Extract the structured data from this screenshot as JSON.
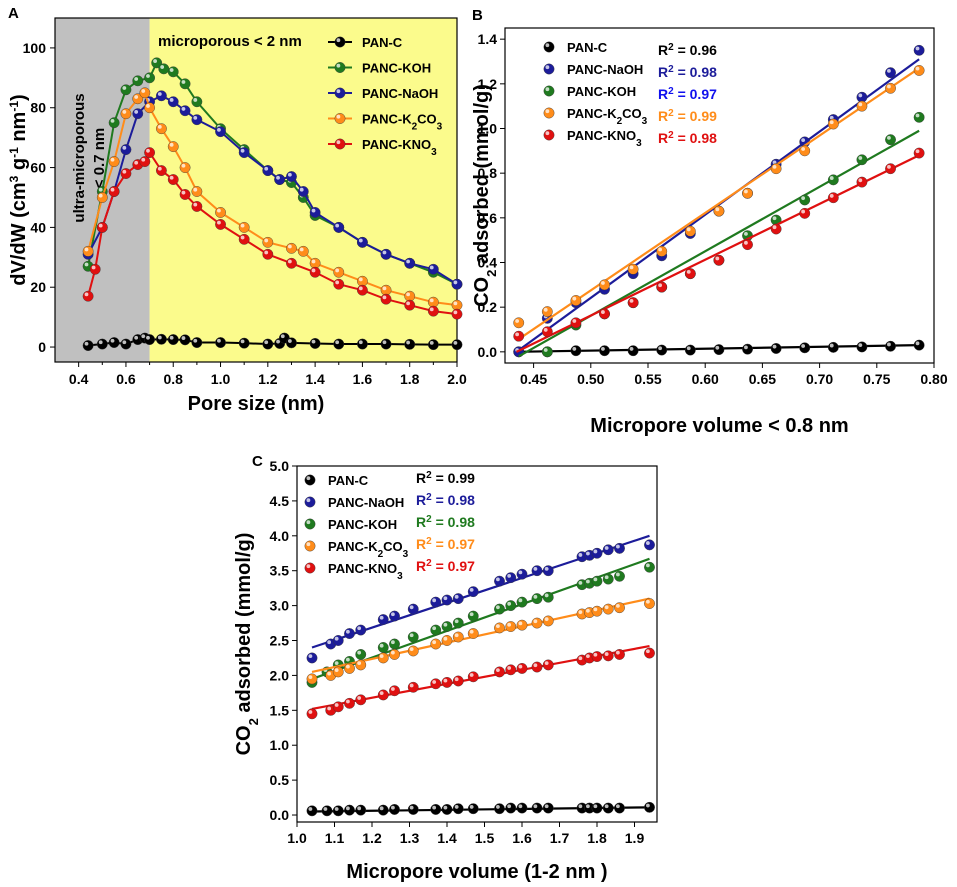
{
  "figure": {
    "colors": {
      "PAN-C": "#000000",
      "PANC-KOH": "#1f7a1f",
      "PANC-NaOH": "#1c1c9a",
      "PANC-K2CO3": "#ff8c1a",
      "PANC-KNO3": "#e01010",
      "r2_blue_B": "#1010ee",
      "region_gray": "#c0c0c0",
      "region_yellow": "#fbfb8c"
    }
  },
  "chart_data": [
    {
      "panel": "A",
      "type": "line",
      "title": "",
      "xlabel": "Pore size (nm)",
      "ylabel": "dV/dW (cm³ g⁻¹ nm⁻¹)",
      "xlim": [
        0.3,
        2.0
      ],
      "ylim": [
        -5,
        110
      ],
      "xticks": [
        "0.4",
        "0.6",
        "0.8",
        "1.0",
        "1.2",
        "1.4",
        "1.6",
        "1.8",
        "2.0"
      ],
      "yticks": [
        "0",
        "20",
        "40",
        "60",
        "80",
        "100"
      ],
      "regions": [
        {
          "label_line1": "ultra-microporous",
          "label_line2": "< 0.7 nm",
          "x_from": 0.3,
          "x_to": 0.7
        },
        {
          "label": "microporous < 2 nm",
          "x_from": 0.7,
          "x_to": 2.0
        }
      ],
      "legend": [
        "PAN-C",
        "PANC-KOH",
        "PANC-NaOH",
        "PANC-K2CO3",
        "PANC-KNO3"
      ],
      "legend_labels": [
        "PAN-C",
        "PANC-KOH",
        "PANC-NaOH",
        "PANC-K₂CO₃",
        "PANC-KNO₃"
      ],
      "series": [
        {
          "name": "PAN-C",
          "x": [
            0.44,
            0.5,
            0.55,
            0.6,
            0.65,
            0.68,
            0.7,
            0.75,
            0.8,
            0.85,
            0.9,
            1.0,
            1.1,
            1.2,
            1.25,
            1.27,
            1.3,
            1.4,
            1.5,
            1.6,
            1.7,
            1.8,
            1.9,
            2.0
          ],
          "y": [
            0.5,
            1.0,
            1.5,
            1.0,
            2.5,
            3.0,
            2.5,
            2.6,
            2.5,
            2.4,
            1.5,
            1.5,
            1.3,
            1.0,
            1.2,
            3.0,
            1.4,
            1.2,
            1.0,
            1.0,
            1.0,
            0.9,
            0.8,
            0.8
          ]
        },
        {
          "name": "PANC-KOH",
          "x": [
            0.44,
            0.5,
            0.55,
            0.6,
            0.65,
            0.7,
            0.73,
            0.76,
            0.8,
            0.85,
            0.9,
            1.0,
            1.1,
            1.2,
            1.25,
            1.3,
            1.35,
            1.4,
            1.5,
            1.6,
            1.7,
            1.8,
            1.9,
            2.0
          ],
          "y": [
            27,
            52,
            75,
            86,
            89,
            90,
            95,
            93,
            92,
            88,
            82,
            73,
            66,
            59,
            56,
            55,
            50,
            44,
            40,
            35,
            31,
            28,
            25,
            21
          ]
        },
        {
          "name": "PANC-NaOH",
          "x": [
            0.44,
            0.5,
            0.55,
            0.6,
            0.65,
            0.7,
            0.75,
            0.8,
            0.85,
            0.9,
            1.0,
            1.1,
            1.2,
            1.25,
            1.3,
            1.35,
            1.4,
            1.5,
            1.6,
            1.7,
            1.8,
            1.9,
            2.0
          ],
          "y": [
            31,
            40,
            52,
            66,
            78,
            82,
            84,
            82,
            79,
            76,
            72,
            65,
            59,
            56,
            57,
            52,
            45,
            40,
            35,
            31,
            28,
            26,
            21
          ]
        },
        {
          "name": "PANC-K2CO3",
          "x": [
            0.44,
            0.5,
            0.55,
            0.6,
            0.65,
            0.68,
            0.7,
            0.75,
            0.8,
            0.85,
            0.9,
            1.0,
            1.1,
            1.2,
            1.3,
            1.35,
            1.4,
            1.5,
            1.6,
            1.7,
            1.8,
            1.9,
            2.0
          ],
          "y": [
            32,
            50,
            62,
            78,
            83,
            85,
            80,
            73,
            67,
            60,
            52,
            45,
            40,
            35,
            33,
            32,
            28,
            25,
            22,
            19,
            17,
            15,
            14
          ]
        },
        {
          "name": "PANC-KNO3",
          "x": [
            0.44,
            0.47,
            0.5,
            0.55,
            0.6,
            0.65,
            0.68,
            0.7,
            0.75,
            0.8,
            0.85,
            0.9,
            1.0,
            1.1,
            1.2,
            1.3,
            1.4,
            1.5,
            1.6,
            1.7,
            1.8,
            1.9,
            2.0
          ],
          "y": [
            17,
            26,
            40,
            52,
            58,
            61,
            62,
            65,
            59,
            56,
            51,
            47,
            41,
            36,
            31,
            28,
            25,
            21,
            19,
            16,
            14,
            12,
            11
          ]
        }
      ]
    },
    {
      "panel": "B",
      "type": "scatter",
      "title": "",
      "xlabel": "Micropore volume < 0.8 nm",
      "ylabel": "CO₂ adsorbed (mmol/g)",
      "xlim": [
        0.425,
        0.8
      ],
      "ylim": [
        -0.05,
        1.45
      ],
      "xticks": [
        "0.45",
        "0.50",
        "0.55",
        "0.60",
        "0.65",
        "0.70",
        "0.75",
        "0.80"
      ],
      "yticks": [
        "0.0",
        "0.2",
        "0.4",
        "0.6",
        "0.8",
        "1.0",
        "1.2",
        "1.4"
      ],
      "legend": [
        "PAN-C",
        "PANC-NaOH",
        "PANC-KOH",
        "PANC-K2CO3",
        "PANC-KNO3"
      ],
      "legend_labels": [
        "PAN-C",
        "PANC-NaOH",
        "PANC-KOH",
        "PANC-K₂CO₃",
        "PANC-KNO₃"
      ],
      "r2": [
        "R² = 0.96",
        "R² = 0.98",
        "R² = 0.97",
        "R² = 0.99",
        "R² = 0.98"
      ],
      "series": [
        {
          "name": "PAN-C",
          "x": [
            0.437,
            0.462,
            0.487,
            0.512,
            0.537,
            0.562,
            0.587,
            0.612,
            0.637,
            0.662,
            0.687,
            0.712,
            0.737,
            0.762,
            0.787
          ],
          "y": [
            0.0,
            0.0,
            0.005,
            0.005,
            0.005,
            0.008,
            0.008,
            0.01,
            0.012,
            0.015,
            0.018,
            0.02,
            0.022,
            0.025,
            0.03
          ],
          "fit": [
            [
              0.435,
              0.0
            ],
            [
              0.787,
              0.03
            ]
          ]
        },
        {
          "name": "PANC-NaOH",
          "x": [
            0.437,
            0.462,
            0.487,
            0.512,
            0.537,
            0.562,
            0.587,
            0.612,
            0.637,
            0.662,
            0.687,
            0.712,
            0.737,
            0.762,
            0.787
          ],
          "y": [
            0.0,
            0.15,
            0.22,
            0.28,
            0.35,
            0.43,
            0.53,
            0.63,
            0.71,
            0.84,
            0.94,
            1.04,
            1.14,
            1.25,
            1.35
          ],
          "fit": [
            [
              0.435,
              0.0
            ],
            [
              0.787,
              1.31
            ]
          ]
        },
        {
          "name": "PANC-KOH",
          "x": [
            0.462,
            0.487,
            0.512,
            0.537,
            0.562,
            0.587,
            0.612,
            0.637,
            0.662,
            0.687,
            0.712,
            0.737,
            0.762,
            0.787
          ],
          "y": [
            0.0,
            0.12,
            0.17,
            0.22,
            0.29,
            0.35,
            0.41,
            0.52,
            0.59,
            0.68,
            0.77,
            0.86,
            0.95,
            1.05
          ],
          "fit": [
            [
              0.437,
              -0.02
            ],
            [
              0.787,
              0.99
            ]
          ]
        },
        {
          "name": "PANC-K2CO3",
          "x": [
            0.437,
            0.462,
            0.487,
            0.512,
            0.537,
            0.562,
            0.587,
            0.612,
            0.637,
            0.662,
            0.687,
            0.712,
            0.737,
            0.762,
            0.787
          ],
          "y": [
            0.13,
            0.18,
            0.23,
            0.3,
            0.37,
            0.45,
            0.54,
            0.63,
            0.71,
            0.82,
            0.9,
            1.02,
            1.1,
            1.18,
            1.26
          ],
          "fit": [
            [
              0.435,
              0.05
            ],
            [
              0.787,
              1.27
            ]
          ]
        },
        {
          "name": "PANC-KNO3",
          "x": [
            0.437,
            0.462,
            0.487,
            0.512,
            0.537,
            0.562,
            0.587,
            0.612,
            0.637,
            0.662,
            0.687,
            0.712,
            0.737,
            0.762,
            0.787
          ],
          "y": [
            0.07,
            0.09,
            0.13,
            0.17,
            0.22,
            0.29,
            0.35,
            0.41,
            0.48,
            0.55,
            0.62,
            0.69,
            0.76,
            0.82,
            0.89
          ],
          "fit": [
            [
              0.435,
              0.0
            ],
            [
              0.787,
              0.88
            ]
          ]
        }
      ]
    },
    {
      "panel": "C",
      "type": "scatter",
      "title": "",
      "xlabel": "Micropore volume (1-2 nm )",
      "ylabel": "CO₂ adsorbed (mmol/g)",
      "xlim": [
        1.0,
        1.96
      ],
      "ylim": [
        -0.1,
        5.0
      ],
      "xticks": [
        "1.0",
        "1.1",
        "1.2",
        "1.3",
        "1.4",
        "1.5",
        "1.6",
        "1.7",
        "1.8",
        "1.9"
      ],
      "yticks": [
        "0.0",
        "0.5",
        "1.0",
        "1.5",
        "2.0",
        "2.5",
        "3.0",
        "3.5",
        "4.0",
        "4.5",
        "5.0"
      ],
      "legend": [
        "PAN-C",
        "PANC-NaOH",
        "PANC-KOH",
        "PANC-K2CO3",
        "PANC-KNO3"
      ],
      "legend_labels": [
        "PAN-C",
        "PANC-NaOH",
        "PANC-KOH",
        "PANC-K₂CO₃",
        "PANC-KNO₃"
      ],
      "r2": [
        "R² = 0.99",
        "R² = 0.98",
        "R² = 0.98",
        "R² = 0.97",
        "R² = 0.97"
      ],
      "series": [
        {
          "name": "PAN-C",
          "x": [
            1.04,
            1.08,
            1.11,
            1.14,
            1.17,
            1.23,
            1.26,
            1.31,
            1.37,
            1.4,
            1.43,
            1.47,
            1.54,
            1.57,
            1.6,
            1.64,
            1.67,
            1.76,
            1.78,
            1.8,
            1.83,
            1.86,
            1.94
          ],
          "y": [
            0.06,
            0.06,
            0.06,
            0.07,
            0.07,
            0.07,
            0.08,
            0.08,
            0.08,
            0.08,
            0.09,
            0.09,
            0.09,
            0.1,
            0.1,
            0.1,
            0.1,
            0.1,
            0.1,
            0.1,
            0.1,
            0.1,
            0.11
          ],
          "fit": [
            [
              1.04,
              0.05
            ],
            [
              1.94,
              0.11
            ]
          ]
        },
        {
          "name": "PANC-NaOH",
          "x": [
            1.04,
            1.09,
            1.11,
            1.14,
            1.17,
            1.23,
            1.26,
            1.31,
            1.37,
            1.4,
            1.43,
            1.47,
            1.54,
            1.57,
            1.6,
            1.64,
            1.67,
            1.76,
            1.78,
            1.8,
            1.83,
            1.86,
            1.94
          ],
          "y": [
            2.25,
            2.45,
            2.5,
            2.6,
            2.65,
            2.8,
            2.85,
            2.95,
            3.05,
            3.08,
            3.1,
            3.2,
            3.35,
            3.4,
            3.45,
            3.5,
            3.5,
            3.7,
            3.72,
            3.75,
            3.8,
            3.82,
            3.87
          ],
          "fit": [
            [
              1.04,
              2.4
            ],
            [
              1.94,
              4.0
            ]
          ]
        },
        {
          "name": "PANC-KOH",
          "x": [
            1.04,
            1.08,
            1.11,
            1.14,
            1.17,
            1.23,
            1.26,
            1.31,
            1.37,
            1.4,
            1.43,
            1.47,
            1.54,
            1.57,
            1.6,
            1.64,
            1.67,
            1.76,
            1.78,
            1.8,
            1.83,
            1.86,
            1.94
          ],
          "y": [
            1.9,
            2.05,
            2.15,
            2.2,
            2.3,
            2.4,
            2.45,
            2.55,
            2.65,
            2.7,
            2.75,
            2.85,
            2.95,
            3.0,
            3.05,
            3.1,
            3.12,
            3.3,
            3.32,
            3.35,
            3.38,
            3.42,
            3.55
          ],
          "fit": [
            [
              1.04,
              1.95
            ],
            [
              1.94,
              3.67
            ]
          ]
        },
        {
          "name": "PANC-K2CO3",
          "x": [
            1.04,
            1.09,
            1.11,
            1.14,
            1.17,
            1.23,
            1.26,
            1.31,
            1.37,
            1.4,
            1.43,
            1.47,
            1.54,
            1.57,
            1.6,
            1.64,
            1.67,
            1.76,
            1.78,
            1.8,
            1.83,
            1.86,
            1.94
          ],
          "y": [
            1.95,
            2.0,
            2.05,
            2.1,
            2.15,
            2.25,
            2.3,
            2.35,
            2.45,
            2.5,
            2.55,
            2.6,
            2.68,
            2.7,
            2.72,
            2.75,
            2.78,
            2.88,
            2.9,
            2.92,
            2.95,
            2.97,
            3.03
          ],
          "fit": [
            [
              1.04,
              2.05
            ],
            [
              1.94,
              3.1
            ]
          ]
        },
        {
          "name": "PANC-KNO3",
          "x": [
            1.04,
            1.09,
            1.11,
            1.14,
            1.17,
            1.23,
            1.26,
            1.31,
            1.37,
            1.4,
            1.43,
            1.47,
            1.54,
            1.57,
            1.6,
            1.64,
            1.67,
            1.76,
            1.78,
            1.8,
            1.83,
            1.86,
            1.94
          ],
          "y": [
            1.45,
            1.5,
            1.55,
            1.6,
            1.65,
            1.72,
            1.78,
            1.83,
            1.88,
            1.9,
            1.92,
            1.98,
            2.05,
            2.08,
            2.1,
            2.12,
            2.15,
            2.22,
            2.25,
            2.27,
            2.28,
            2.3,
            2.32
          ],
          "fit": [
            [
              1.04,
              1.52
            ],
            [
              1.94,
              2.42
            ]
          ]
        }
      ]
    }
  ]
}
